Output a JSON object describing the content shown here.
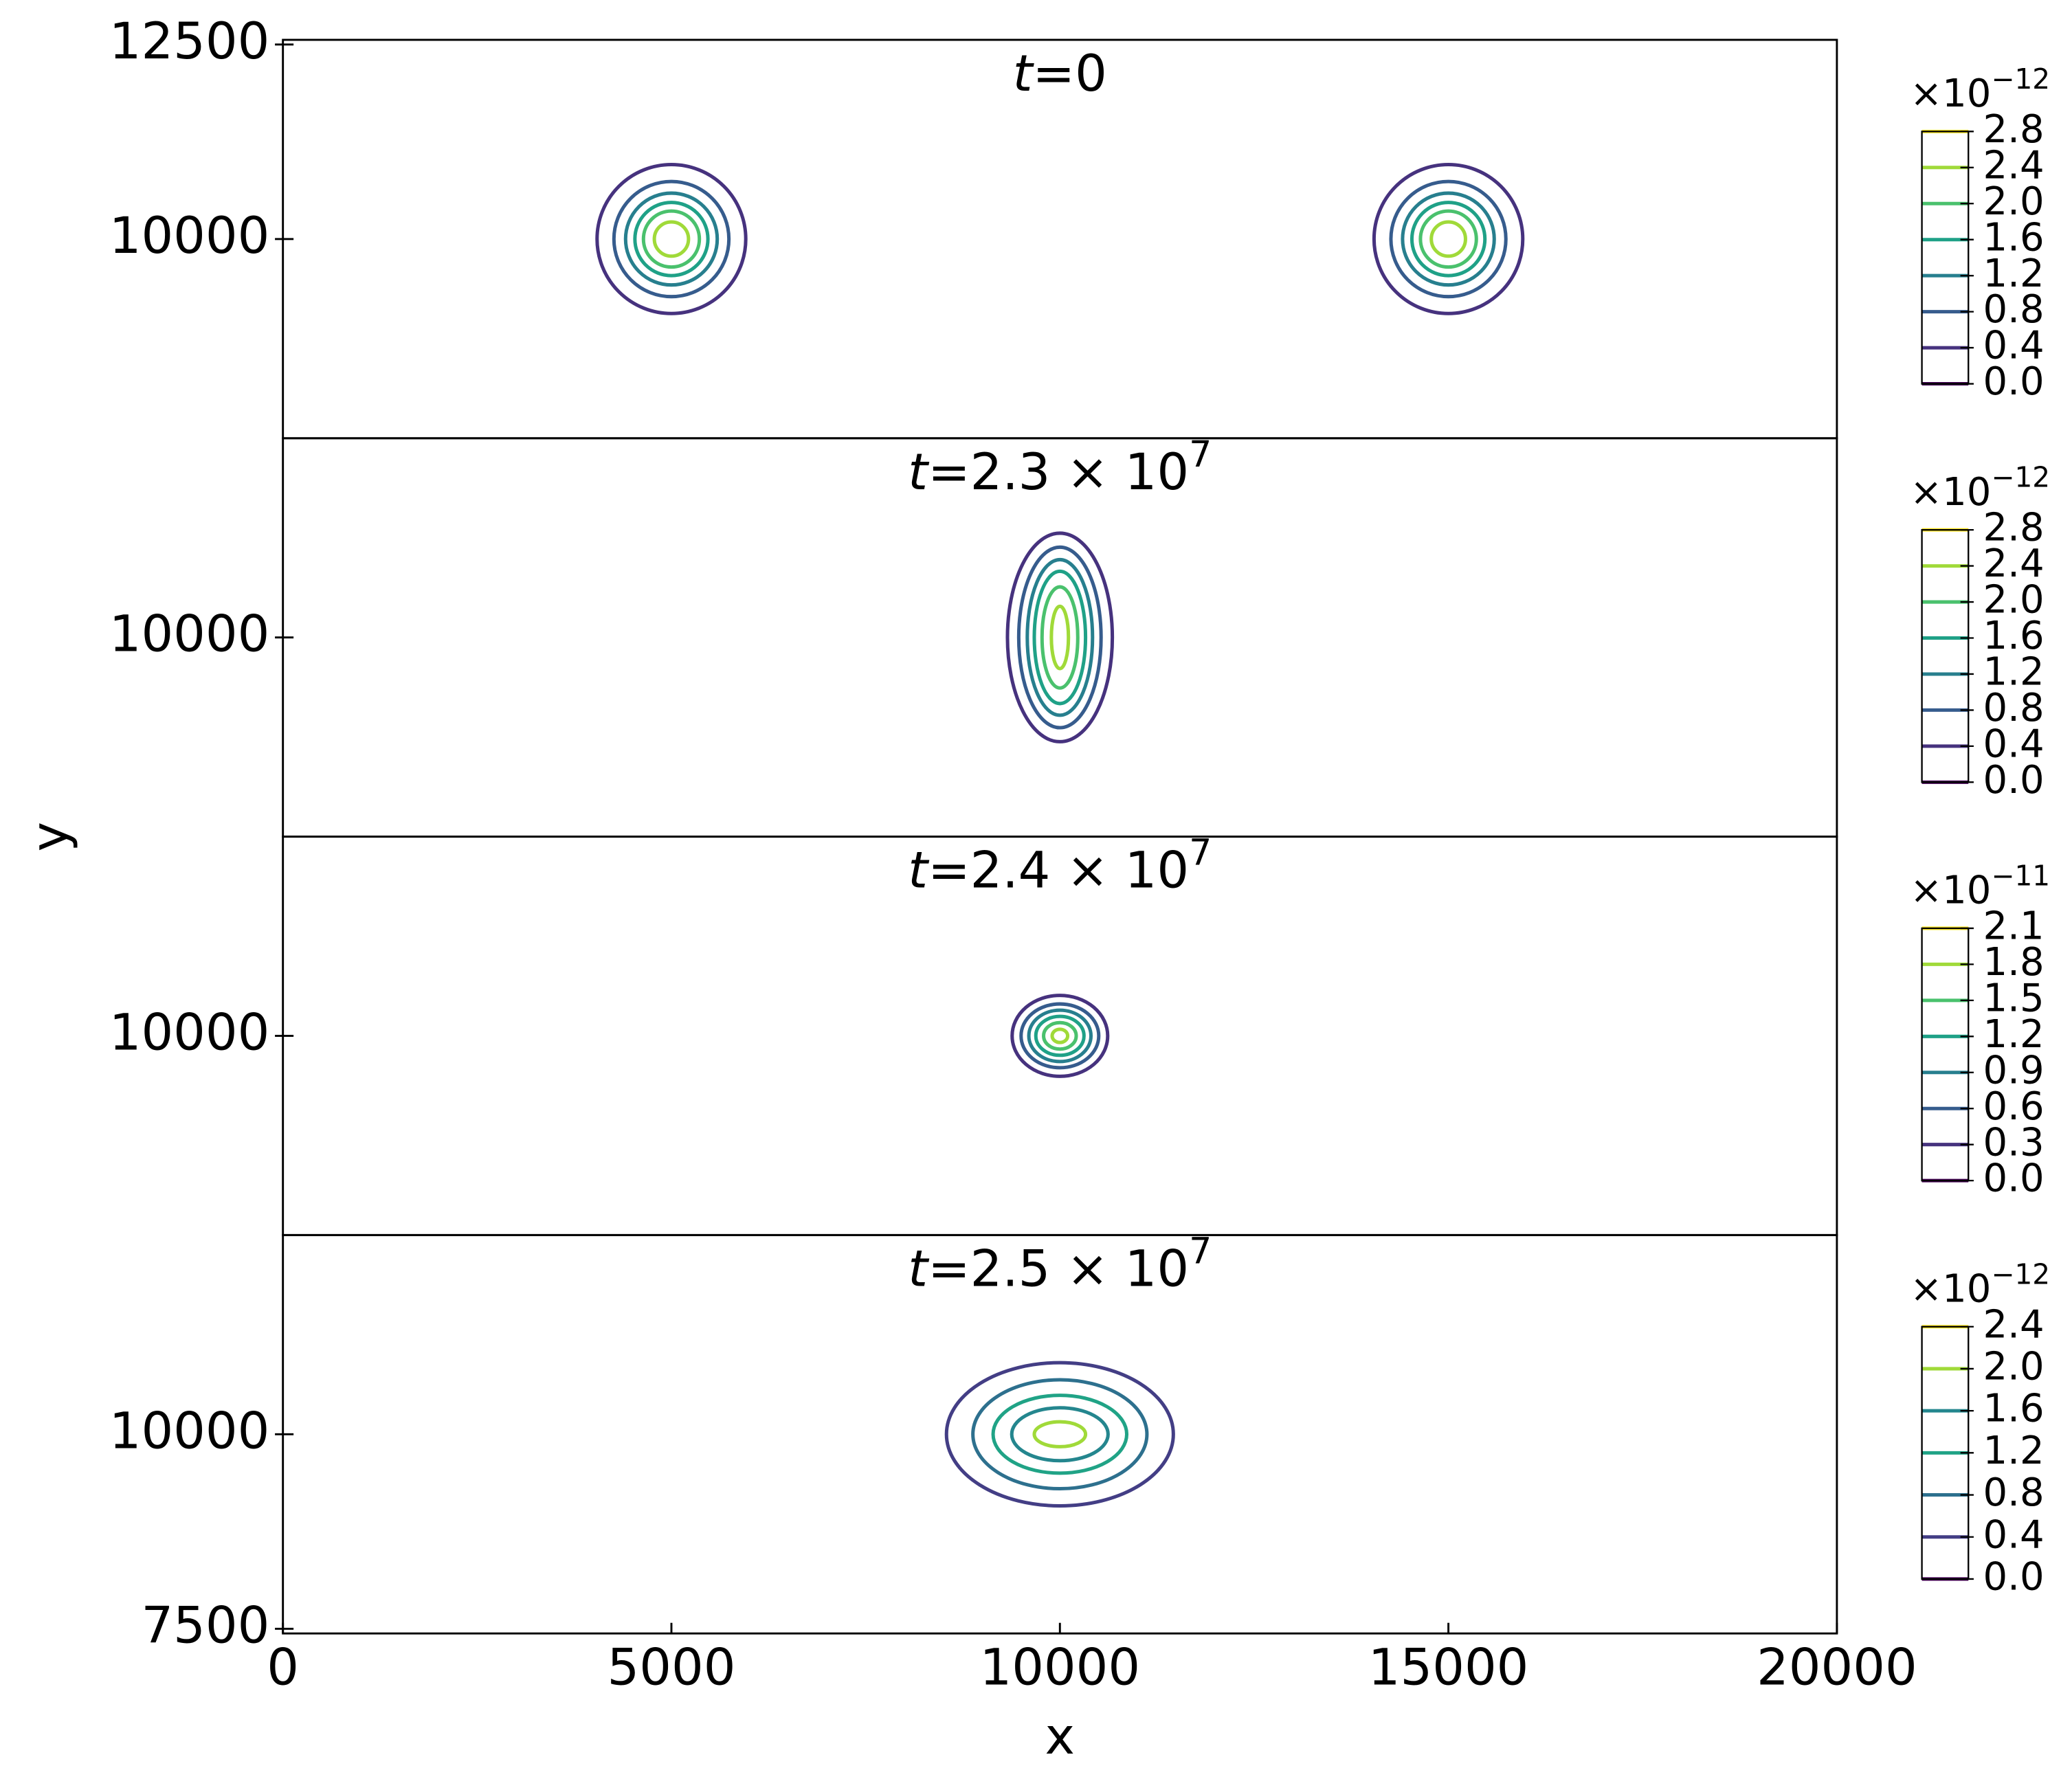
{
  "chart_data": [
    {
      "type": "contour",
      "title": {
        "var": "t",
        "text": "=0"
      },
      "ylabel": "y",
      "xlim": [
        0,
        20000
      ],
      "ylim": [
        7440,
        12560
      ],
      "yticks": [
        10000,
        12500
      ],
      "colorbar": {
        "multiplier": "×10",
        "exponent": "−12",
        "ticks": [
          {
            "value": 0,
            "label": "0.0"
          },
          {
            "value": 0.4,
            "label": "0.4"
          },
          {
            "value": 0.8,
            "label": "0.8"
          },
          {
            "value": 1.2,
            "label": "1.2"
          },
          {
            "value": 1.6,
            "label": "1.6"
          },
          {
            "value": 2,
            "label": "2.0"
          },
          {
            "value": 2.4,
            "label": "2.4"
          },
          {
            "value": 2.8,
            "label": "2.8"
          }
        ],
        "colors": [
          "#440154",
          "#46327e",
          "#365c8d",
          "#277f8e",
          "#1fa187",
          "#4ac16d",
          "#a0da39",
          "#fde725"
        ]
      },
      "contours": [
        {
          "level": 0.4,
          "cx": 5000,
          "cy": 10000,
          "rx": 957,
          "ry": 957
        },
        {
          "level": 0.8,
          "cx": 5000,
          "cy": 10000,
          "rx": 740,
          "ry": 740
        },
        {
          "level": 1.2,
          "cx": 5000,
          "cy": 10000,
          "rx": 590,
          "ry": 590
        },
        {
          "level": 1.6,
          "cx": 5000,
          "cy": 10000,
          "rx": 470,
          "ry": 470
        },
        {
          "level": 2,
          "cx": 5000,
          "cy": 10000,
          "rx": 360,
          "ry": 360
        },
        {
          "level": 2.4,
          "cx": 5000,
          "cy": 10000,
          "rx": 220,
          "ry": 220
        },
        {
          "level": 0.4,
          "cx": 15000,
          "cy": 10000,
          "rx": 957,
          "ry": 957
        },
        {
          "level": 0.8,
          "cx": 15000,
          "cy": 10000,
          "rx": 740,
          "ry": 740
        },
        {
          "level": 1.2,
          "cx": 15000,
          "cy": 10000,
          "rx": 590,
          "ry": 590
        },
        {
          "level": 1.6,
          "cx": 15000,
          "cy": 10000,
          "rx": 470,
          "ry": 470
        },
        {
          "level": 2,
          "cx": 15000,
          "cy": 10000,
          "rx": 360,
          "ry": 360
        },
        {
          "level": 2.4,
          "cx": 15000,
          "cy": 10000,
          "rx": 220,
          "ry": 220
        }
      ]
    },
    {
      "type": "contour",
      "title": {
        "var": "t",
        "text": "=2.3 × 10",
        "exponent": "7"
      },
      "xlim": [
        0,
        20000
      ],
      "ylim": [
        7440,
        12560
      ],
      "yticks": [
        10000
      ],
      "colorbar": {
        "multiplier": "×10",
        "exponent": "−12",
        "ticks": [
          {
            "value": 0,
            "label": "0.0"
          },
          {
            "value": 0.4,
            "label": "0.4"
          },
          {
            "value": 0.8,
            "label": "0.8"
          },
          {
            "value": 1.2,
            "label": "1.2"
          },
          {
            "value": 1.6,
            "label": "1.6"
          },
          {
            "value": 2,
            "label": "2.0"
          },
          {
            "value": 2.4,
            "label": "2.4"
          },
          {
            "value": 2.8,
            "label": "2.8"
          }
        ],
        "colors": [
          "#440154",
          "#46327e",
          "#365c8d",
          "#277f8e",
          "#1fa187",
          "#4ac16d",
          "#a0da39",
          "#fde725"
        ]
      },
      "contours": [
        {
          "level": 0.4,
          "cx": 10000,
          "cy": 10000,
          "rx": 675,
          "ry": 1340
        },
        {
          "level": 0.8,
          "cx": 10000,
          "cy": 10000,
          "rx": 530,
          "ry": 1160
        },
        {
          "level": 1.2,
          "cx": 10000,
          "cy": 10000,
          "rx": 420,
          "ry": 1000
        },
        {
          "level": 1.6,
          "cx": 10000,
          "cy": 10000,
          "rx": 330,
          "ry": 850
        },
        {
          "level": 2,
          "cx": 10000,
          "cy": 10000,
          "rx": 230,
          "ry": 650
        },
        {
          "level": 2.4,
          "cx": 10000,
          "cy": 10000,
          "rx": 110,
          "ry": 400
        }
      ]
    },
    {
      "type": "contour",
      "title": {
        "var": "t",
        "text": "=2.4 × 10",
        "exponent": "7"
      },
      "xlim": [
        0,
        20000
      ],
      "ylim": [
        7440,
        12560
      ],
      "yticks": [
        10000
      ],
      "colorbar": {
        "multiplier": "×10",
        "exponent": "−11",
        "ticks": [
          {
            "value": 0,
            "label": "0.0"
          },
          {
            "value": 0.3,
            "label": "0.3"
          },
          {
            "value": 0.6,
            "label": "0.6"
          },
          {
            "value": 0.9,
            "label": "0.9"
          },
          {
            "value": 1.2,
            "label": "1.2"
          },
          {
            "value": 1.5,
            "label": "1.5"
          },
          {
            "value": 1.8,
            "label": "1.8"
          },
          {
            "value": 2.1,
            "label": "2.1"
          }
        ],
        "colors": [
          "#440154",
          "#46327e",
          "#365c8d",
          "#277f8e",
          "#1fa187",
          "#4ac16d",
          "#a0da39",
          "#fde725"
        ]
      },
      "contours": [
        {
          "level": 0.3,
          "cx": 10000,
          "cy": 10000,
          "rx": 615,
          "ry": 520
        },
        {
          "level": 0.6,
          "cx": 10000,
          "cy": 10000,
          "rx": 500,
          "ry": 410
        },
        {
          "level": 0.9,
          "cx": 10000,
          "cy": 10000,
          "rx": 400,
          "ry": 330
        },
        {
          "level": 1.2,
          "cx": 10000,
          "cy": 10000,
          "rx": 310,
          "ry": 250
        },
        {
          "level": 1.5,
          "cx": 10000,
          "cy": 10000,
          "rx": 210,
          "ry": 170
        },
        {
          "level": 1.8,
          "cx": 10000,
          "cy": 10000,
          "rx": 100,
          "ry": 85
        }
      ]
    },
    {
      "type": "contour",
      "title": {
        "var": "t",
        "text": "=2.5 × 10",
        "exponent": "7"
      },
      "xlabel": "x",
      "xlim": [
        0,
        20000
      ],
      "ylim": [
        7440,
        12560
      ],
      "yticks": [
        7500,
        10000
      ],
      "xticks": [
        0,
        5000,
        10000,
        15000,
        20000
      ],
      "colorbar": {
        "multiplier": "×10",
        "exponent": "−12",
        "ticks": [
          {
            "value": 0,
            "label": "0.0"
          },
          {
            "value": 0.4,
            "label": "0.4"
          },
          {
            "value": 0.8,
            "label": "0.8"
          },
          {
            "value": 1.2,
            "label": "1.2"
          },
          {
            "value": 1.6,
            "label": "1.6"
          },
          {
            "value": 2,
            "label": "2.0"
          },
          {
            "value": 2.4,
            "label": "2.4"
          }
        ],
        "colors": [
          "#440154",
          "#433e85",
          "#2d708e",
          "#20a386",
          "#24868e",
          "#a0da39",
          "#fde725"
        ]
      },
      "contours": [
        {
          "level": 0.4,
          "cx": 10000,
          "cy": 10000,
          "rx": 1460,
          "ry": 920
        },
        {
          "level": 0.8,
          "cx": 10000,
          "cy": 10000,
          "rx": 1120,
          "ry": 700
        },
        {
          "level": 1.2,
          "cx": 10000,
          "cy": 10000,
          "rx": 860,
          "ry": 500
        },
        {
          "level": 1.6,
          "cx": 10000,
          "cy": 10000,
          "rx": 620,
          "ry": 340
        },
        {
          "level": 2,
          "cx": 10000,
          "cy": 10000,
          "rx": 330,
          "ry": 160
        }
      ]
    }
  ]
}
